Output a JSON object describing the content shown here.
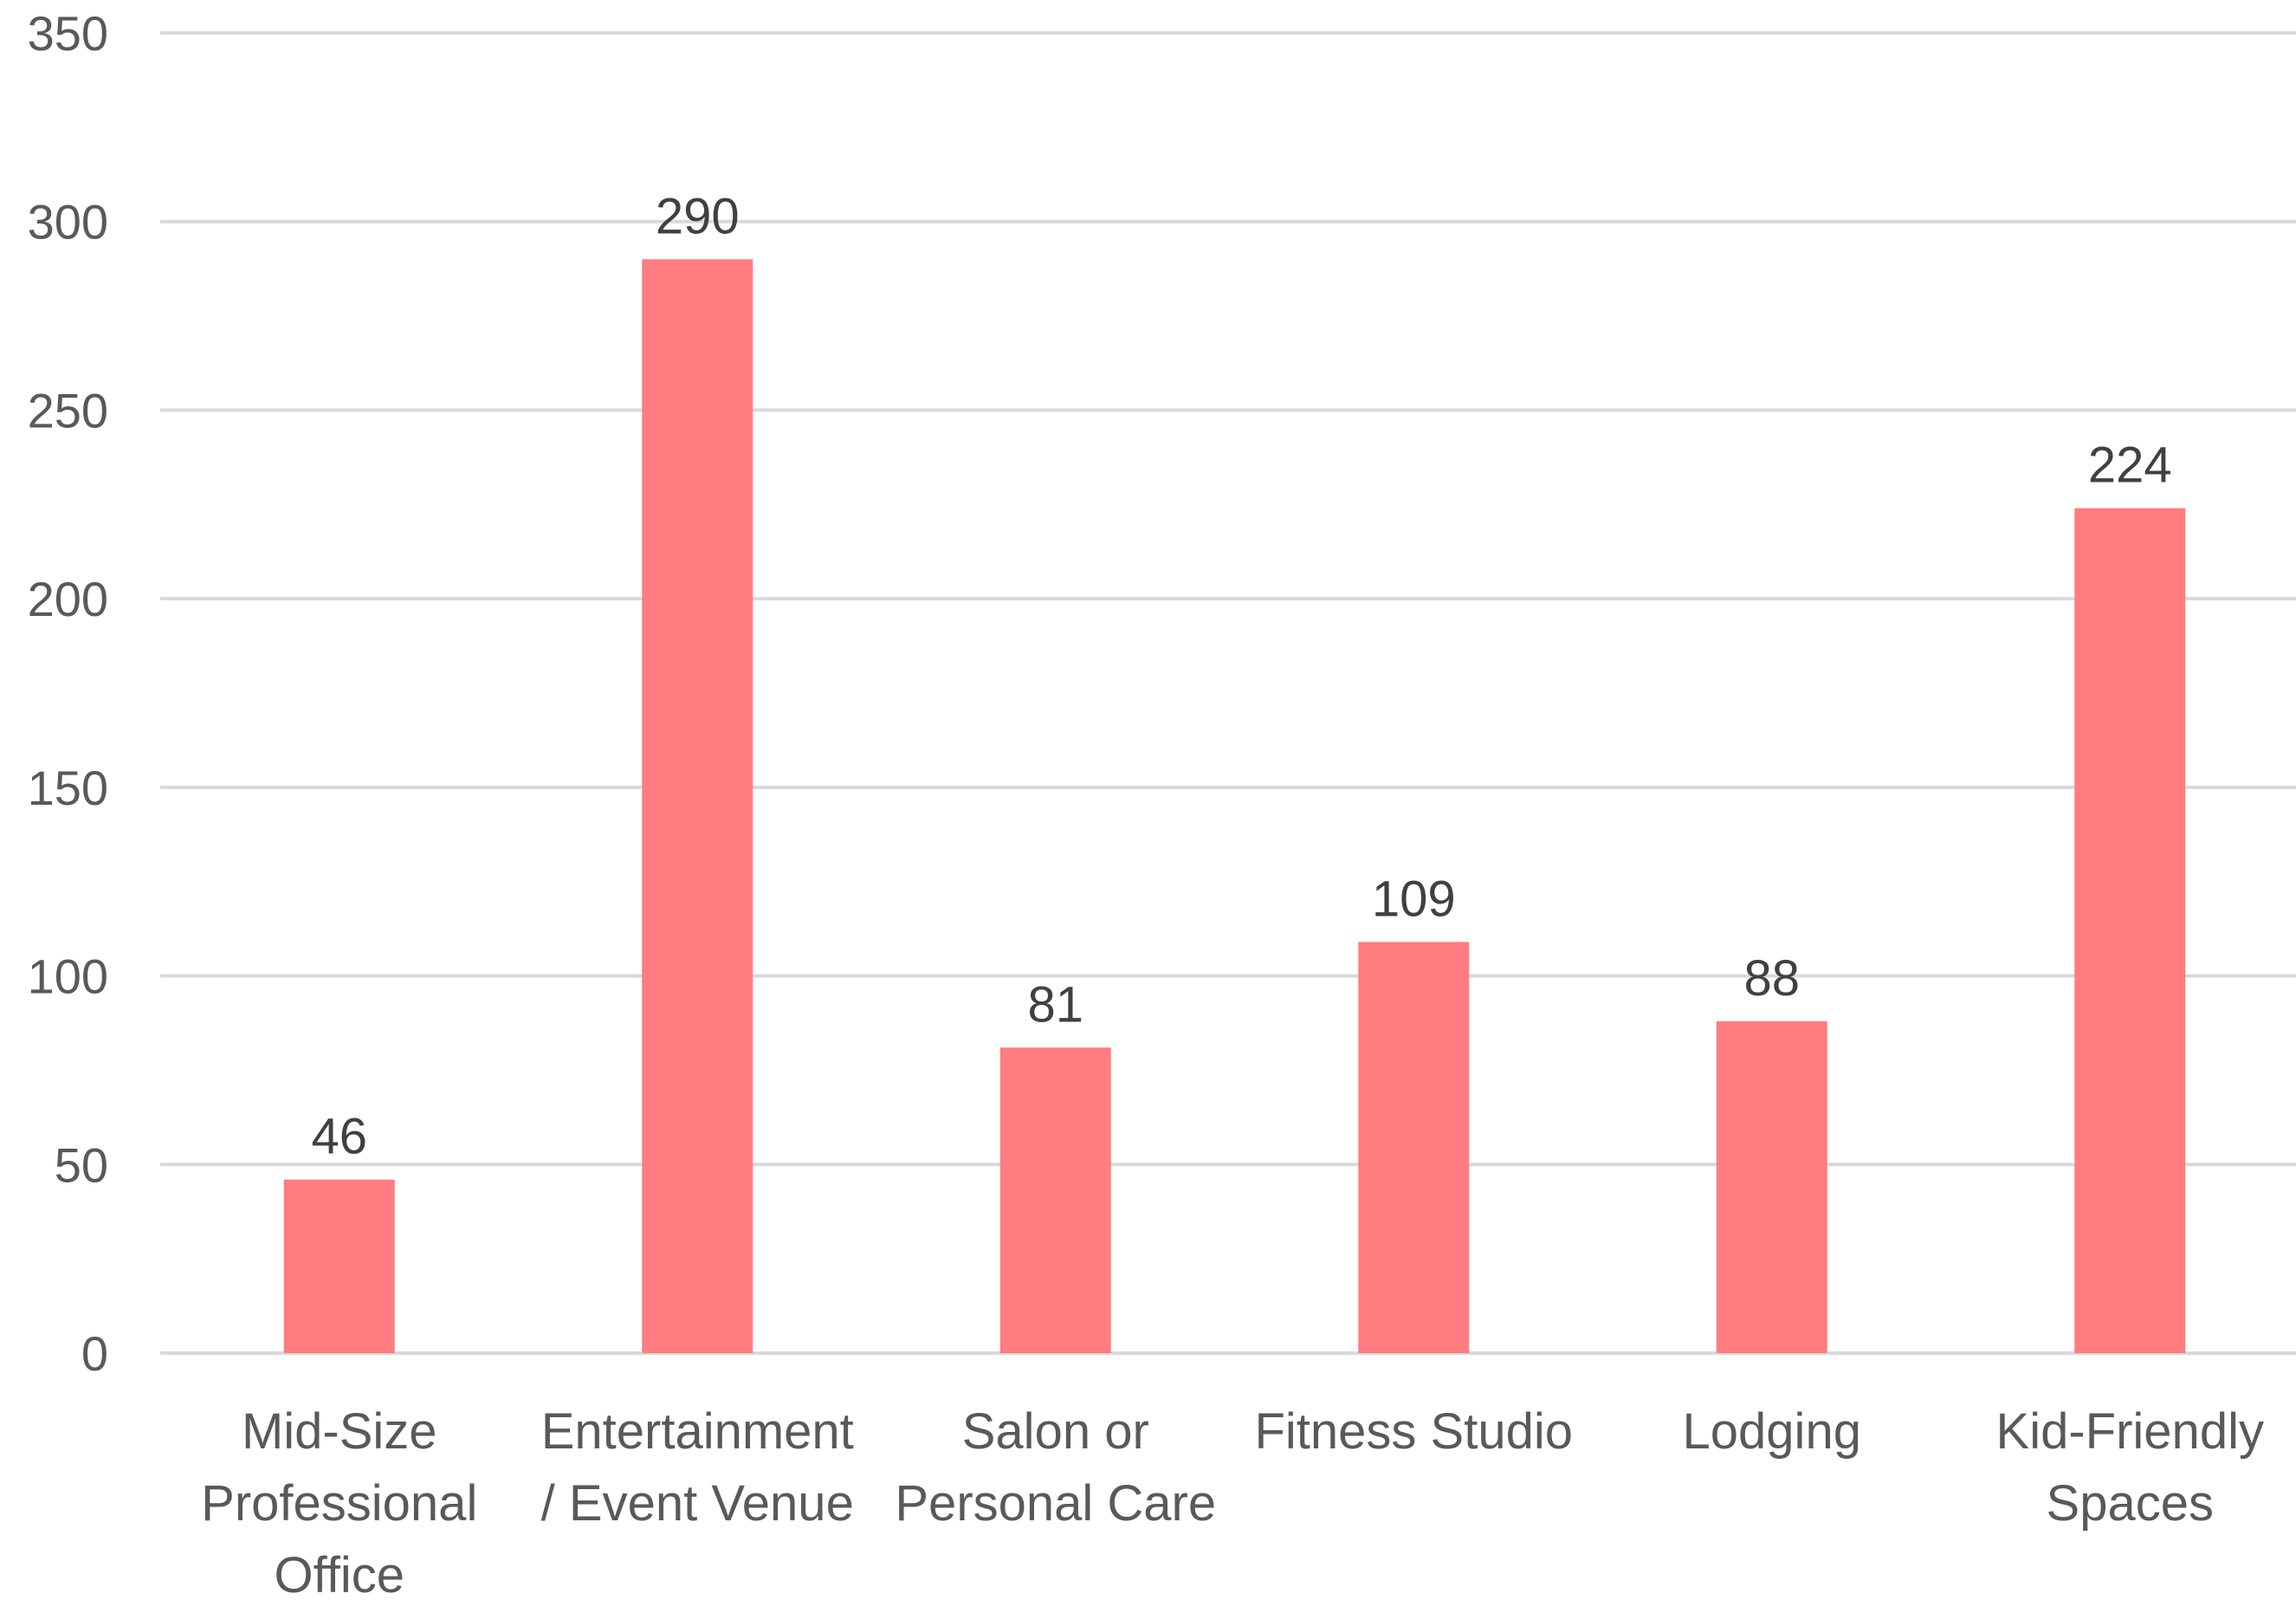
{
  "chart_data": {
    "type": "bar",
    "categories": [
      [
        "Mid-Size",
        "Professional",
        "Office"
      ],
      [
        "Entertainment",
        "/ Event Venue"
      ],
      [
        "Salon or",
        "Personal Care"
      ],
      [
        "Fitness Studio"
      ],
      [
        "Lodging"
      ],
      [
        "Kid-Friendly",
        "Spaces"
      ]
    ],
    "values": [
      46,
      290,
      81,
      109,
      88,
      224
    ],
    "data_labels": [
      "46",
      "290",
      "81",
      "109",
      "88",
      "224"
    ],
    "title": "",
    "xlabel": "",
    "ylabel": "",
    "ylim": [
      0,
      350
    ],
    "yticks": [
      0,
      50,
      100,
      150,
      200,
      250,
      300,
      350
    ],
    "grid": true,
    "legend": "none",
    "colors": {
      "bar": "#FF7C80",
      "grid": "#D9D9D9",
      "tick_text": "#595959",
      "data_label_text": "#404040"
    }
  }
}
